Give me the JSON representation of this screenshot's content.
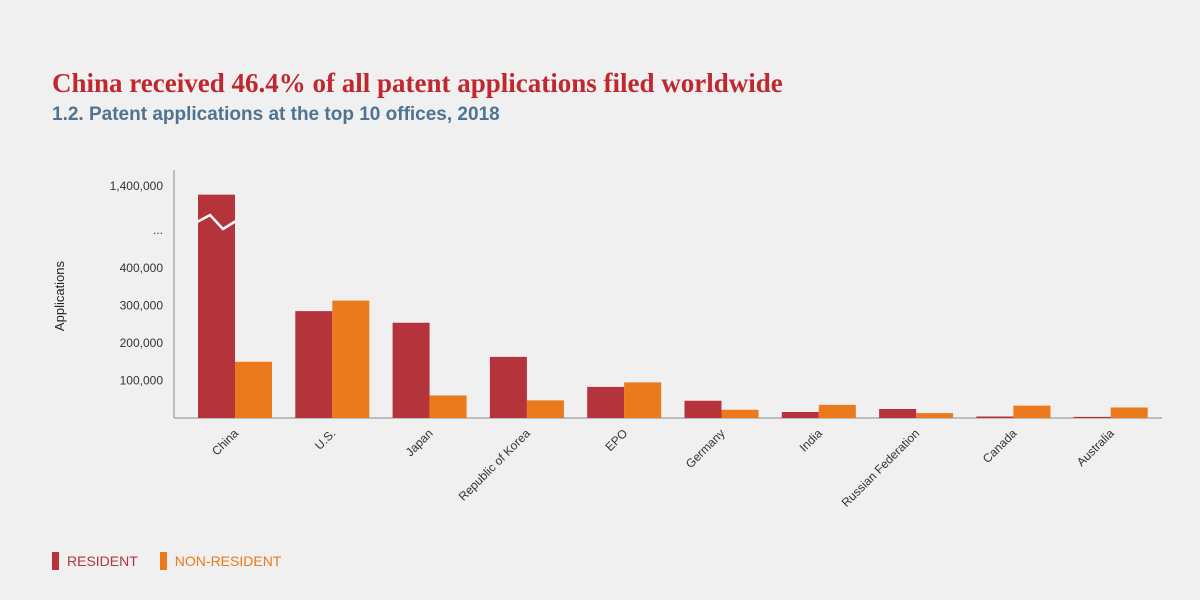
{
  "chart_data": {
    "type": "bar",
    "title": "China received 46.4% of all patent applications filed worldwide",
    "subtitle": "1.2. Patent applications at the top 10 offices, 2018",
    "xlabel": "",
    "ylabel": "Applications",
    "categories": [
      "China",
      "U.S.",
      "Japan",
      "Republic of Korea",
      "EPO",
      "Germany",
      "India",
      "Russian Federation",
      "Canada",
      "Australia"
    ],
    "series": [
      {
        "name": "RESIDENT",
        "color": "#b5333b",
        "values": [
          1400000,
          285000,
          254000,
          163000,
          83000,
          46000,
          16000,
          24000,
          4000,
          3000
        ]
      },
      {
        "name": "NON-RESIDENT",
        "color": "#ea7a1c",
        "values": [
          150000,
          313000,
          60000,
          47000,
          95000,
          22000,
          35000,
          13000,
          33000,
          28000
        ]
      }
    ],
    "yticks": [
      {
        "label": "100,000",
        "value": 100000
      },
      {
        "label": "200,000",
        "value": 200000
      },
      {
        "label": "300,000",
        "value": 300000
      },
      {
        "label": "400,000",
        "value": 400000
      },
      {
        "label": "...",
        "value": null
      },
      {
        "label": "1,400,000",
        "value": 1400000
      }
    ],
    "axis_break": {
      "lower_max": 450000,
      "upper_min": 1380000,
      "upper_max": 1410000
    },
    "ylim": [
      0,
      1400000
    ],
    "legend": {
      "position": "bottom-left"
    },
    "grid": false
  }
}
